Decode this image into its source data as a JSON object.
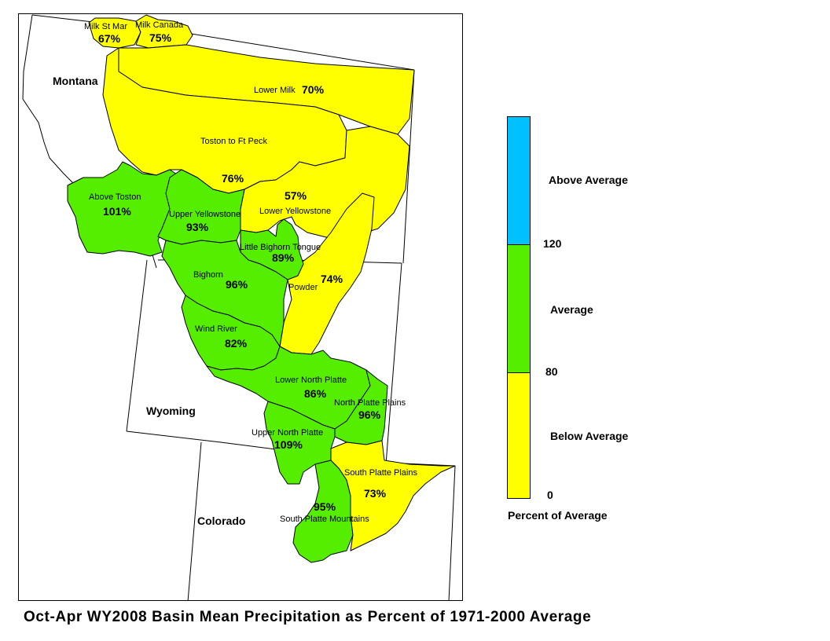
{
  "title": "Oct-Apr WY2008 Basin Mean Precipitation as Percent of 1971-2000 Average",
  "colors": {
    "above": "#00c0ff",
    "average": "#55ee00",
    "below": "#ffff00",
    "outline": "#000000",
    "background": "#ffffff"
  },
  "legend": {
    "title": "Percent of Average",
    "bands": [
      {
        "name": "Above Average",
        "range": [
          120,
          null
        ],
        "color_key": "above"
      },
      {
        "name": "Average",
        "range": [
          80,
          120
        ],
        "color_key": "average"
      },
      {
        "name": "Below Average",
        "range": [
          0,
          80
        ],
        "color_key": "below"
      }
    ],
    "ticks": [
      "120",
      "80",
      "0"
    ]
  },
  "states": [
    {
      "id": "montana",
      "name": "Montana"
    },
    {
      "id": "wyoming",
      "name": "Wyoming"
    },
    {
      "id": "colorado",
      "name": "Colorado"
    }
  ],
  "basins": [
    {
      "id": "milk-st-mary",
      "name": "Milk St Mar",
      "percent": "67%",
      "category": "below"
    },
    {
      "id": "milk-canada",
      "name": "Milk Canada",
      "percent": "75%",
      "category": "below"
    },
    {
      "id": "lower-milk",
      "name": "Lower Milk",
      "percent": "70%",
      "category": "below"
    },
    {
      "id": "toston-ft-peck",
      "name": "Toston to Ft Peck",
      "percent": "76%",
      "category": "below"
    },
    {
      "id": "above-toston",
      "name": "Above Toston",
      "percent": "101%",
      "category": "average"
    },
    {
      "id": "lower-yellowstone",
      "name": "Lower Yellowstone",
      "percent": "57%",
      "category": "below"
    },
    {
      "id": "upper-yellowstone",
      "name": "Upper Yellowstone",
      "percent": "93%",
      "category": "average"
    },
    {
      "id": "little-bighorn-tongue",
      "name": "Little Bighorn Tongue",
      "percent": "89%",
      "category": "average"
    },
    {
      "id": "powder",
      "name": "Powder",
      "percent": "74%",
      "category": "below"
    },
    {
      "id": "bighorn",
      "name": "Bighorn",
      "percent": "96%",
      "category": "average"
    },
    {
      "id": "wind-river",
      "name": "Wind River",
      "percent": "82%",
      "category": "average"
    },
    {
      "id": "lower-north-platte",
      "name": "Lower North Platte",
      "percent": "86%",
      "category": "average"
    },
    {
      "id": "north-platte-plains",
      "name": "North Platte Plains",
      "percent": "96%",
      "category": "average"
    },
    {
      "id": "upper-north-platte",
      "name": "Upper North Platte",
      "percent": "109%",
      "category": "average"
    },
    {
      "id": "south-platte-plains",
      "name": "South Platte Plains",
      "percent": "73%",
      "category": "below"
    },
    {
      "id": "south-platte-mountains",
      "name": "South Platte Mountains",
      "percent": "95%",
      "category": "average"
    }
  ]
}
